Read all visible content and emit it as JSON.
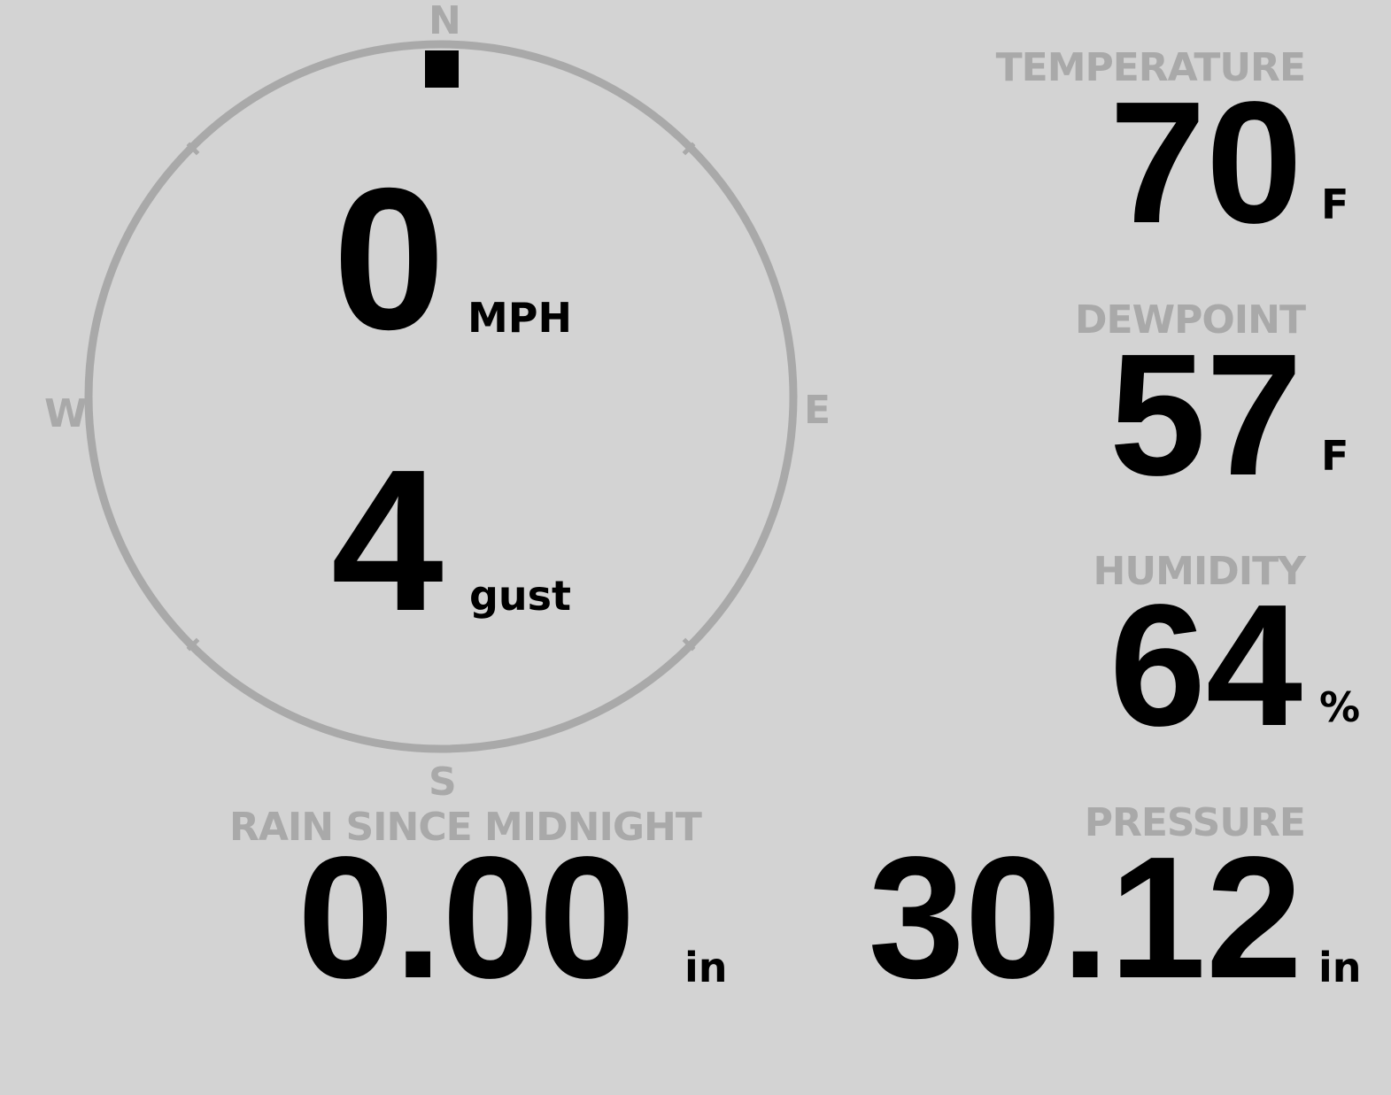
{
  "colors": {
    "background": "#d3d3d3",
    "muted": "#a9a9a9",
    "value": "#000000"
  },
  "wind": {
    "cardinals": {
      "n": "N",
      "e": "E",
      "s": "S",
      "w": "W"
    },
    "speed": "0",
    "speed_unit": "MPH",
    "gust": "4",
    "gust_unit": "gust",
    "direction_deg": 0
  },
  "temperature": {
    "label": "TEMPERATURE",
    "value": "70",
    "unit": "F"
  },
  "dewpoint": {
    "label": "DEWPOINT",
    "value": "57",
    "unit": "F"
  },
  "humidity": {
    "label": "HUMIDITY",
    "value": "64",
    "unit": "%"
  },
  "pressure": {
    "label": "PRESSURE",
    "value": "30.12",
    "unit": "in"
  },
  "rain": {
    "label": "RAIN SINCE MIDNIGHT",
    "value": "0.00",
    "unit": "in"
  }
}
